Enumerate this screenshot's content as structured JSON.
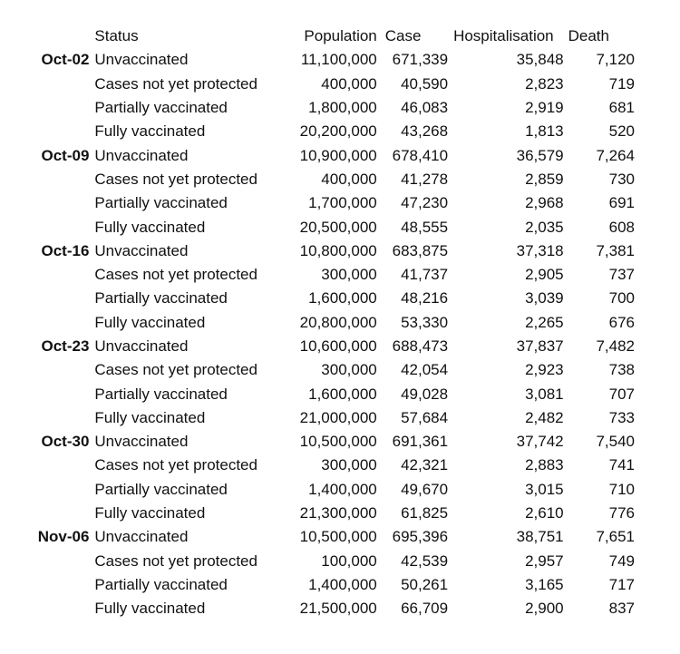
{
  "page": {
    "background_color": "#ffffff",
    "text_color": "#111111"
  },
  "chart_data": {
    "type": "table",
    "columns": [
      "",
      "Status",
      "Population",
      "Case",
      "Hospitalisation",
      "Death"
    ],
    "legend_position": "none",
    "grid": false,
    "groups": [
      {
        "date": "Oct-02",
        "rows": [
          {
            "status": "Unvaccinated",
            "population": "11,100,000",
            "case": "671,339",
            "hospitalisation": "35,848",
            "death": "7,120"
          },
          {
            "status": "Cases not yet protected",
            "population": "400,000",
            "case": "40,590",
            "hospitalisation": "2,823",
            "death": "719"
          },
          {
            "status": "Partially vaccinated",
            "population": "1,800,000",
            "case": "46,083",
            "hospitalisation": "2,919",
            "death": "681"
          },
          {
            "status": "Fully vaccinated",
            "population": "20,200,000",
            "case": "43,268",
            "hospitalisation": "1,813",
            "death": "520"
          }
        ]
      },
      {
        "date": "Oct-09",
        "rows": [
          {
            "status": "Unvaccinated",
            "population": "10,900,000",
            "case": "678,410",
            "hospitalisation": "36,579",
            "death": "7,264"
          },
          {
            "status": "Cases not yet protected",
            "population": "400,000",
            "case": "41,278",
            "hospitalisation": "2,859",
            "death": "730"
          },
          {
            "status": "Partially vaccinated",
            "population": "1,700,000",
            "case": "47,230",
            "hospitalisation": "2,968",
            "death": "691"
          },
          {
            "status": "Fully vaccinated",
            "population": "20,500,000",
            "case": "48,555",
            "hospitalisation": "2,035",
            "death": "608"
          }
        ]
      },
      {
        "date": "Oct-16",
        "rows": [
          {
            "status": "Unvaccinated",
            "population": "10,800,000",
            "case": "683,875",
            "hospitalisation": "37,318",
            "death": "7,381"
          },
          {
            "status": "Cases not yet protected",
            "population": "300,000",
            "case": "41,737",
            "hospitalisation": "2,905",
            "death": "737"
          },
          {
            "status": "Partially vaccinated",
            "population": "1,600,000",
            "case": "48,216",
            "hospitalisation": "3,039",
            "death": "700"
          },
          {
            "status": "Fully vaccinated",
            "population": "20,800,000",
            "case": "53,330",
            "hospitalisation": "2,265",
            "death": "676"
          }
        ]
      },
      {
        "date": "Oct-23",
        "rows": [
          {
            "status": "Unvaccinated",
            "population": "10,600,000",
            "case": "688,473",
            "hospitalisation": "37,837",
            "death": "7,482"
          },
          {
            "status": "Cases not yet protected",
            "population": "300,000",
            "case": "42,054",
            "hospitalisation": "2,923",
            "death": "738"
          },
          {
            "status": "Partially vaccinated",
            "population": "1,600,000",
            "case": "49,028",
            "hospitalisation": "3,081",
            "death": "707"
          },
          {
            "status": "Fully vaccinated",
            "population": "21,000,000",
            "case": "57,684",
            "hospitalisation": "2,482",
            "death": "733"
          }
        ]
      },
      {
        "date": "Oct-30",
        "rows": [
          {
            "status": "Unvaccinated",
            "population": "10,500,000",
            "case": "691,361",
            "hospitalisation": "37,742",
            "death": "7,540"
          },
          {
            "status": "Cases not yet protected",
            "population": "300,000",
            "case": "42,321",
            "hospitalisation": "2,883",
            "death": "741"
          },
          {
            "status": "Partially vaccinated",
            "population": "1,400,000",
            "case": "49,670",
            "hospitalisation": "3,015",
            "death": "710"
          },
          {
            "status": "Fully vaccinated",
            "population": "21,300,000",
            "case": "61,825",
            "hospitalisation": "2,610",
            "death": "776"
          }
        ]
      },
      {
        "date": "Nov-06",
        "rows": [
          {
            "status": "Unvaccinated",
            "population": "10,500,000",
            "case": "695,396",
            "hospitalisation": "38,751",
            "death": "7,651"
          },
          {
            "status": "Cases not yet protected",
            "population": "100,000",
            "case": "42,539",
            "hospitalisation": "2,957",
            "death": "749"
          },
          {
            "status": "Partially vaccinated",
            "population": "1,400,000",
            "case": "50,261",
            "hospitalisation": "3,165",
            "death": "717"
          },
          {
            "status": "Fully vaccinated",
            "population": "21,500,000",
            "case": "66,709",
            "hospitalisation": "2,900",
            "death": "837"
          }
        ]
      }
    ]
  }
}
